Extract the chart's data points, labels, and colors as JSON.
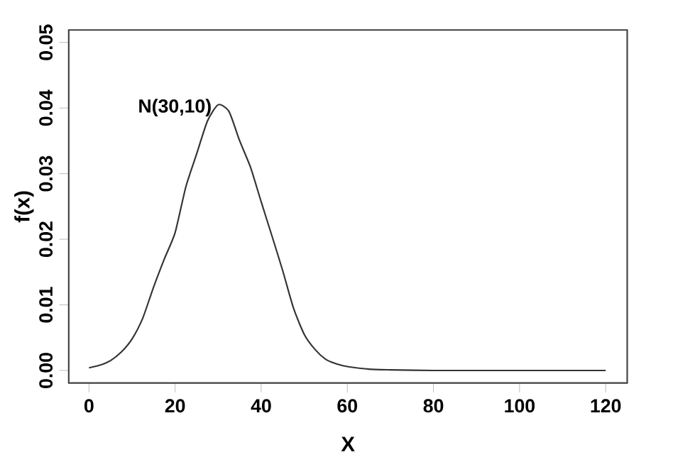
{
  "chart_data": {
    "type": "line",
    "xlabel": "X",
    "ylabel": "f(x)",
    "x": [
      0,
      2.5,
      5,
      7.5,
      10,
      12.5,
      15,
      17.5,
      20,
      22.5,
      25,
      27.5,
      30,
      32.5,
      35,
      37.5,
      40,
      42.5,
      45,
      47.5,
      50,
      52.5,
      55,
      57.5,
      60,
      65,
      70,
      80,
      90,
      100,
      110,
      120
    ],
    "series": [
      {
        "color": "#333333",
        "values": [
          0.0004,
          0.0008,
          0.0015,
          0.0028,
          0.0048,
          0.008,
          0.0127,
          0.017,
          0.021,
          0.028,
          0.033,
          0.038,
          0.0405,
          0.0395,
          0.035,
          0.031,
          0.0257,
          0.0205,
          0.0152,
          0.0095,
          0.0055,
          0.0032,
          0.0017,
          0.001,
          0.0006,
          0.0002,
          0.0001,
          0,
          0,
          0,
          0,
          0
        ]
      }
    ],
    "xlim": [
      -4.7,
      125
    ],
    "ylim": [
      -0.0019,
      0.0519
    ],
    "xticks": [
      0,
      20,
      40,
      60,
      80,
      100,
      120
    ],
    "yticks": [
      {
        "value": 0,
        "label": "0.00"
      },
      {
        "value": 0.01,
        "label": "0.01"
      },
      {
        "value": 0.02,
        "label": "0.02"
      },
      {
        "value": 0.03,
        "label": "0.03"
      },
      {
        "value": 0.04,
        "label": "0.04"
      },
      {
        "value": 0.05,
        "label": "0.05"
      }
    ],
    "annotations": [
      "N(30,10)"
    ],
    "grid": false,
    "marker": "none",
    "line_style": "solid"
  }
}
